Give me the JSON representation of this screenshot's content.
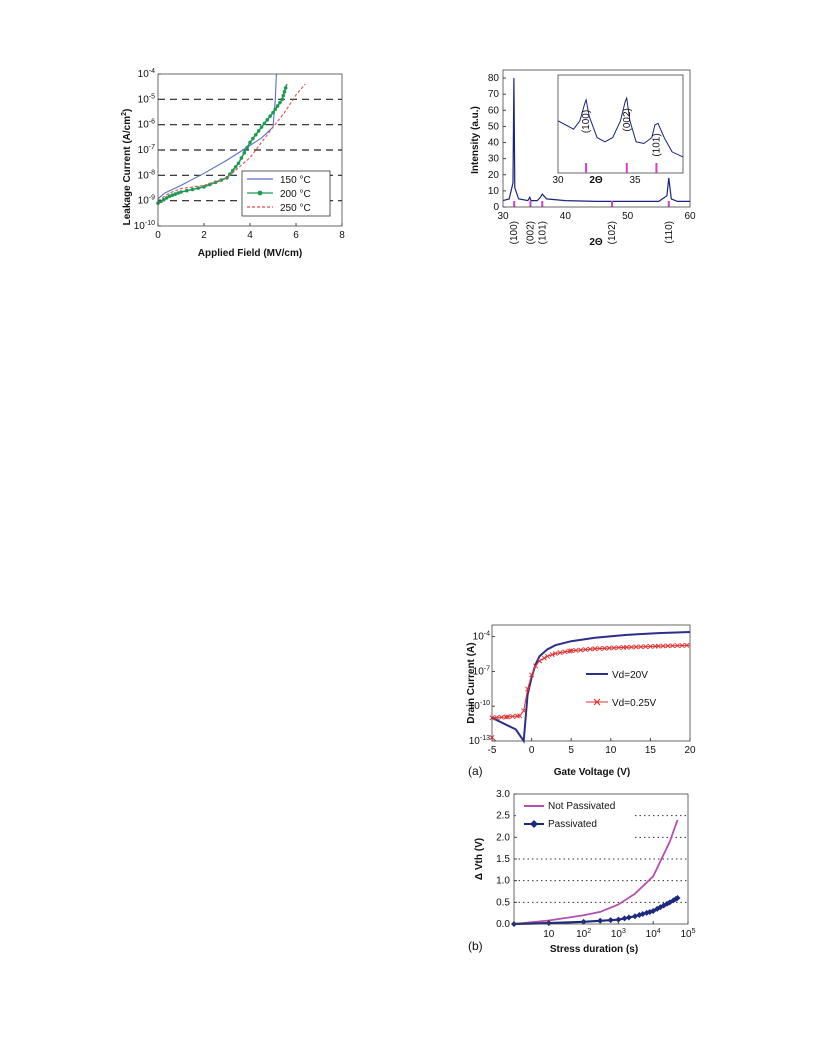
{
  "figures": {
    "leakage": {
      "ylabel": "Leakage Current (A/cm²)",
      "ylabel_main": "Leakage Current (A/cm",
      "ylabel_sup": "2",
      "ylabel_end": ")",
      "xlabel": "Applied Field (MV/cm)",
      "xticks": [
        "0",
        "2",
        "4",
        "6",
        "8"
      ],
      "yticks": [
        "-10",
        "-9",
        "-8",
        "-7",
        "-6",
        "-5",
        "-4"
      ],
      "legend": [
        "150 °C",
        "200 °C",
        "250 °C"
      ]
    },
    "xrd": {
      "ylabel": "Intensity (a.u.)",
      "xlabel": "2Θ",
      "xticks": [
        "30",
        "40",
        "50",
        "60"
      ],
      "yticks": [
        "0",
        "10",
        "20",
        "30",
        "40",
        "50",
        "60",
        "70",
        "80"
      ],
      "peaks": [
        "(100)",
        "(002)",
        "(101)",
        "(102)",
        "(110)"
      ],
      "inset_peaks": [
        "(100)",
        "(002)",
        "(101)"
      ],
      "inset_xticks": [
        "30",
        "35"
      ],
      "inset_xlabel": "2Θ"
    },
    "transfer": {
      "panel_label": "(a)",
      "ylabel": "Drain Current (A)",
      "xlabel": "Gate Voltage (V)",
      "xticks": [
        "-5",
        "0",
        "5",
        "10",
        "15",
        "20"
      ],
      "yticks": [
        "-13",
        "-10",
        "-7",
        "-4"
      ],
      "legend": [
        "Vd=20V",
        "Vd=0.25V"
      ]
    },
    "stress": {
      "panel_label": "(b)",
      "ylabel": "Δ Vth (V)",
      "xlabel": "Stress duration (s)",
      "xticks": [
        "10",
        "2",
        "3",
        "4",
        "5"
      ],
      "yticks": [
        "0.0",
        "0.5",
        "1.0",
        "1.5",
        "2.0",
        "2.5",
        "3.0"
      ],
      "legend": [
        "Not Passivated",
        "Passivated"
      ]
    }
  },
  "chart_data": [
    {
      "type": "line",
      "xlabel": "Applied Field (MV/cm)",
      "ylabel": "Leakage Current (A/cm²)",
      "xlim": [
        0,
        8
      ],
      "ylim": [
        1e-10,
        0.0001
      ],
      "yscale": "log",
      "grid": "dashed horizontal",
      "legend_position": "bottom-right",
      "series": [
        {
          "name": "150 °C",
          "color": "#5a6fc9",
          "x": [
            0,
            0.3,
            1,
            2,
            3,
            4,
            4.5,
            5,
            5.1,
            5.15
          ],
          "y": [
            1.2e-09,
            2e-09,
            4e-09,
            1.2e-08,
            4e-08,
            1.5e-07,
            3e-07,
            8e-07,
            1e-05,
            0.0001
          ]
        },
        {
          "name": "200 °C",
          "color": "#1e9a55",
          "x": [
            0,
            0.5,
            1,
            2,
            3,
            3.5,
            4,
            4.5,
            5,
            5.4,
            5.6
          ],
          "y": [
            8e-10,
            1.5e-09,
            2.2e-09,
            3.5e-09,
            8e-09,
            3e-08,
            2e-07,
            8e-07,
            3e-06,
            1e-05,
            4e-05
          ]
        },
        {
          "name": "250 °C",
          "color": "#e05050",
          "x": [
            0,
            0.5,
            1,
            2,
            3,
            4,
            4.5,
            5,
            5.5,
            6,
            6.4
          ],
          "y": [
            1e-09,
            2e-09,
            3e-09,
            4e-09,
            8e-09,
            5e-08,
            2e-07,
            8e-07,
            3e-06,
            1.5e-05,
            4e-05
          ]
        }
      ]
    },
    {
      "type": "line",
      "xlabel": "2Θ",
      "ylabel": "Intensity (a.u.)",
      "xlim": [
        30,
        60
      ],
      "ylim": [
        0,
        85
      ],
      "series": [
        {
          "name": "",
          "color": "#1a237e",
          "x": [
            30,
            31,
            31.6,
            31.75,
            31.9,
            32.5,
            34,
            34.3,
            34.5,
            35.5,
            36,
            36.3,
            37,
            40,
            45,
            50,
            55,
            56.3,
            56.6,
            57,
            58,
            60
          ],
          "y": [
            4,
            5,
            15,
            80,
            12,
            5,
            4,
            6,
            4,
            4,
            6,
            8,
            5,
            4,
            3.5,
            3.5,
            3.5,
            7,
            18,
            5,
            3.5,
            3.5
          ]
        }
      ],
      "reference_peaks_x": [
        31.8,
        34.4,
        36.3,
        47.5,
        56.6
      ],
      "inset": {
        "xlim": [
          30,
          38
        ],
        "x": [
          30,
          30.5,
          31,
          31.4,
          31.7,
          31.8,
          32,
          32.5,
          33,
          33.5,
          34,
          34.3,
          34.4,
          34.6,
          35,
          35.5,
          36,
          36.2,
          36.4,
          36.8,
          37.3,
          38
        ],
        "y": [
          0.55,
          0.5,
          0.45,
          0.55,
          0.75,
          0.8,
          0.6,
          0.35,
          0.3,
          0.35,
          0.55,
          0.78,
          0.82,
          0.55,
          0.3,
          0.28,
          0.35,
          0.5,
          0.52,
          0.35,
          0.18,
          0.12
        ],
        "reference_peaks_x": [
          31.8,
          34.4,
          36.3
        ]
      }
    },
    {
      "type": "line",
      "xlabel": "Gate Voltage (V)",
      "ylabel": "Drain Current (A)",
      "xlim": [
        -5,
        20
      ],
      "ylim": [
        1e-13,
        0.001
      ],
      "yscale": "log",
      "legend_position": "right",
      "series": [
        {
          "name": "Vd=20V",
          "color": "#2b2f8c",
          "marker": "none",
          "x": [
            -5,
            -2,
            -1,
            -0.5,
            0,
            0.5,
            1,
            2,
            3,
            5,
            8,
            12,
            16,
            20
          ],
          "y": [
            1e-11,
            1e-12,
            1e-13,
            1e-09,
            3e-08,
            4e-07,
            2e-06,
            8e-06,
            1.8e-05,
            4e-05,
            8e-05,
            0.00014,
            0.0002,
            0.00025
          ]
        },
        {
          "name": "Vd=0.25V",
          "color": "#e03030",
          "marker": "x",
          "x": [
            -5,
            -3,
            -1.5,
            -1,
            -0.5,
            0,
            0.5,
            1,
            2,
            3,
            5,
            8,
            12,
            16,
            20
          ],
          "y": [
            1e-11,
            1.2e-11,
            1.5e-11,
            4e-11,
            3e-09,
            5e-08,
            3e-07,
            8e-07,
            2e-06,
            3.5e-06,
            6e-06,
            9e-06,
            1.2e-05,
            1.5e-05,
            1.8e-05
          ]
        },
        {
          "name": "",
          "color": "#e03030",
          "marker": "x",
          "x": [
            -5,
            -4.5
          ],
          "y": [
            2e-13,
            1e-13
          ]
        }
      ]
    },
    {
      "type": "line",
      "xlabel": "Stress duration (s)",
      "ylabel": "Δ Vth (V)",
      "xscale": "log",
      "xlim": [
        1,
        100000
      ],
      "ylim": [
        0,
        3
      ],
      "grid": "dotted horizontal",
      "legend_position": "top-left",
      "series": [
        {
          "name": "Not Passivated",
          "color": "#b24fb0",
          "x": [
            1,
            10,
            100,
            300,
            1000,
            3000,
            10000,
            30000,
            50000
          ],
          "y": [
            0,
            0.08,
            0.2,
            0.28,
            0.45,
            0.7,
            1.1,
            1.9,
            2.4
          ]
        },
        {
          "name": "Passivated",
          "color": "#1b2a7c",
          "x": [
            1,
            10,
            100,
            1000,
            3000,
            10000,
            30000,
            50000
          ],
          "y": [
            0,
            0.02,
            0.05,
            0.1,
            0.18,
            0.3,
            0.5,
            0.6
          ]
        }
      ]
    }
  ]
}
